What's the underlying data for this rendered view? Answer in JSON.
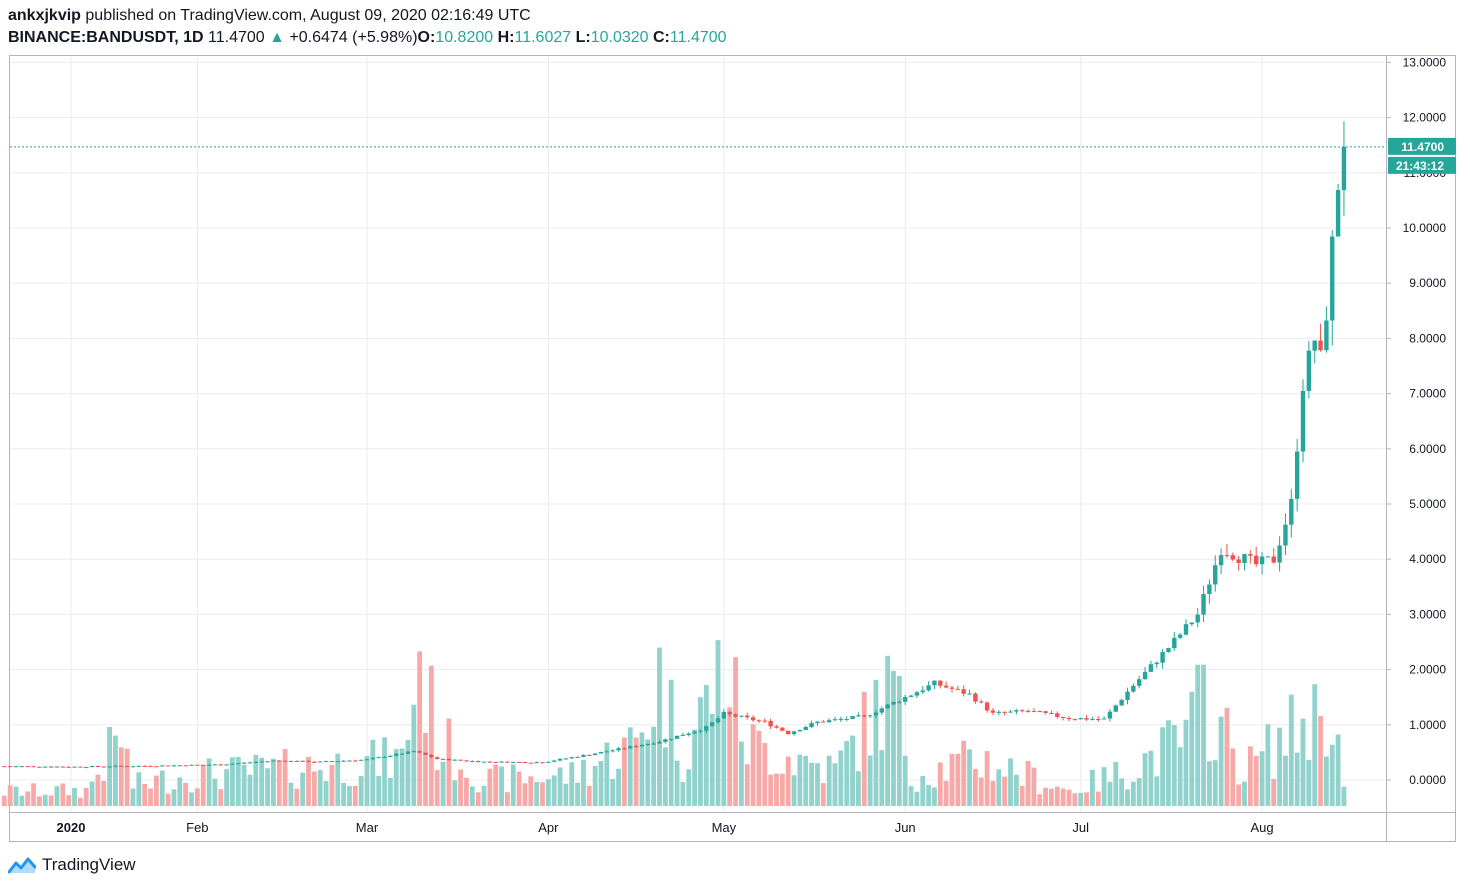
{
  "header": {
    "user": "ankxjkvip",
    "published": "published on TradingView.com, August 09, 2020 02:16:49 UTC",
    "symbol": "BINANCE:BANDUSDT, 1D",
    "last": "11.4700",
    "change": "+0.6474 (+5.98%)",
    "o_label": "O:",
    "o": "10.8200",
    "h_label": "H:",
    "h": "11.6027",
    "l_label": "L:",
    "l": "10.0320",
    "c_label": "C:",
    "c": "11.4700"
  },
  "footer": {
    "brand": "TradingView"
  },
  "colors": {
    "up": "#26a69a",
    "down": "#ef5350",
    "vol_up": "#92d2cc",
    "vol_down": "#f7a9a7",
    "grid": "#e8ecef"
  },
  "chart_data": {
    "type": "candlestick",
    "ylim": [
      -0.5,
      13.1
    ],
    "y_ticks": [
      "0.0000",
      "1.0000",
      "2.0000",
      "3.0000",
      "4.0000",
      "5.0000",
      "6.0000",
      "7.0000",
      "8.0000",
      "9.0000",
      "10.0000",
      "11.0000",
      "12.0000",
      "13.0000"
    ],
    "x_ticks": [
      {
        "label": "2020",
        "day": 0
      },
      {
        "label": "Feb",
        "day": 31
      },
      {
        "label": "Mar",
        "day": 60
      },
      {
        "label": "Apr",
        "day": 91
      },
      {
        "label": "May",
        "day": 121
      },
      {
        "label": "Jun",
        "day": 152
      },
      {
        "label": "Jul",
        "day": 182
      },
      {
        "label": "Aug",
        "day": 213
      }
    ],
    "last_price_label": "11.4700",
    "countdown_label": "21:43:12",
    "last_price": 11.47,
    "anchors": [
      [
        -2,
        0.25
      ],
      [
        10,
        0.24
      ],
      [
        25,
        0.26
      ],
      [
        35,
        0.28
      ],
      [
        44,
        0.35
      ],
      [
        52,
        0.33
      ],
      [
        60,
        0.37
      ],
      [
        68,
        0.52
      ],
      [
        72,
        0.38
      ],
      [
        80,
        0.33
      ],
      [
        90,
        0.32
      ],
      [
        100,
        0.5
      ],
      [
        110,
        0.7
      ],
      [
        118,
        0.95
      ],
      [
        121,
        1.2
      ],
      [
        128,
        1.05
      ],
      [
        132,
        0.85
      ],
      [
        137,
        1.05
      ],
      [
        145,
        1.15
      ],
      [
        150,
        1.4
      ],
      [
        157,
        1.75
      ],
      [
        163,
        1.55
      ],
      [
        167,
        1.2
      ],
      [
        173,
        1.25
      ],
      [
        180,
        1.12
      ],
      [
        186,
        1.1
      ],
      [
        190,
        1.6
      ],
      [
        197,
        2.4
      ],
      [
        202,
        3.0
      ],
      [
        206,
        4.2
      ],
      [
        212,
        3.9
      ],
      [
        215,
        4.0
      ],
      [
        218,
        5.0
      ],
      [
        220,
        7.2
      ],
      [
        222,
        8.0
      ],
      [
        223,
        7.6
      ],
      [
        224,
        8.5
      ],
      [
        226,
        10.82
      ],
      [
        227,
        11.47
      ]
    ],
    "volume_anchors": [
      [
        -2,
        0.28
      ],
      [
        12,
        0.3
      ],
      [
        18,
        1.35
      ],
      [
        20,
        0.4
      ],
      [
        30,
        0.6
      ],
      [
        45,
        0.7
      ],
      [
        66,
        0.9
      ],
      [
        69,
        2.9
      ],
      [
        72,
        1.3
      ],
      [
        80,
        0.5
      ],
      [
        95,
        0.6
      ],
      [
        106,
        1.2
      ],
      [
        110,
        2.45
      ],
      [
        114,
        1.0
      ],
      [
        121,
        2.7
      ],
      [
        125,
        1.2
      ],
      [
        140,
        0.7
      ],
      [
        150,
        2.3
      ],
      [
        153,
        0.6
      ],
      [
        165,
        0.9
      ],
      [
        180,
        0.3
      ],
      [
        188,
        0.6
      ],
      [
        200,
        1.3
      ],
      [
        203,
        2.1
      ],
      [
        210,
        0.7
      ],
      [
        220,
        1.6
      ],
      [
        225,
        1.95
      ],
      [
        227,
        0.35
      ]
    ],
    "candle_count": 230,
    "volume_axis_max": 3.0
  }
}
